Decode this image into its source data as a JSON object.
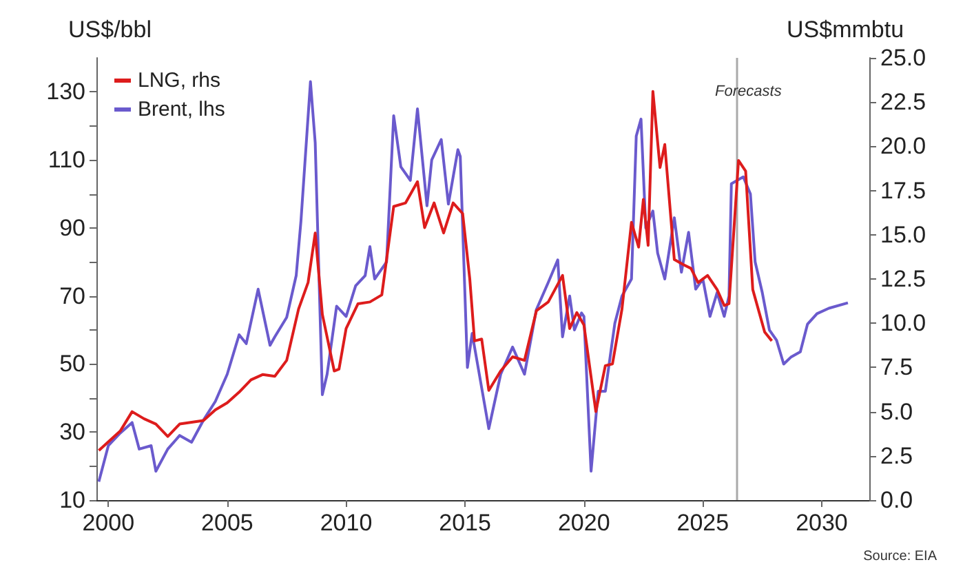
{
  "chart_data": {
    "type": "line",
    "ylabel": "US$/bbl",
    "y2label": "US$mmbtu",
    "xlim": [
      1999.5,
      2032
    ],
    "xticks": [
      2000,
      2005,
      2010,
      2015,
      2020,
      2025,
      2030
    ],
    "ylim": [
      10,
      140
    ],
    "yticks": [
      10,
      {
        "value": 20,
        "label": null
      },
      30,
      {
        "value": 40,
        "label": null
      },
      50,
      {
        "value": 60,
        "label": null
      },
      70,
      {
        "value": 80,
        "label": null
      },
      90,
      {
        "value": 100,
        "label": null
      },
      110,
      {
        "value": 120,
        "label": null
      },
      130
    ],
    "y2lim": [
      0,
      25
    ],
    "y2ticks": [
      {
        "value": 0,
        "label": "0.0"
      },
      2.5,
      {
        "value": 5,
        "label": "5.0"
      },
      7.5,
      {
        "value": 10,
        "label": "10.0"
      },
      12.5,
      {
        "value": 15,
        "label": "15.0"
      },
      17.5,
      {
        "value": 20,
        "label": "20.0"
      },
      22.5,
      {
        "value": 25,
        "label": "25.0"
      }
    ],
    "legend": "top left",
    "grid": false,
    "ref_lines": [
      {
        "axis": "x",
        "value": 2026.4,
        "label": "Forecasts",
        "color": "#aaaaaa"
      }
    ],
    "annotations": [
      "Source: EIA"
    ],
    "series": [
      {
        "name": "LNG, rhs",
        "color": "#dd1c1c",
        "axis": "y2",
        "x": [
          1999.6,
          2000.5,
          2001.0,
          2001.5,
          2002.0,
          2002.5,
          2003.0,
          2003.5,
          2004.0,
          2004.5,
          2005.0,
          2005.5,
          2006.0,
          2006.5,
          2007.0,
          2007.5,
          2008.0,
          2008.4,
          2008.7,
          2009.0,
          2009.5,
          2009.7,
          2010.0,
          2010.5,
          2011.0,
          2011.5,
          2012.0,
          2012.5,
          2013.0,
          2013.3,
          2013.7,
          2014.1,
          2014.5,
          2014.9,
          2015.2,
          2015.4,
          2015.7,
          2016.0,
          2016.5,
          2017.0,
          2017.5,
          2018.0,
          2018.5,
          2019.1,
          2019.4,
          2019.7,
          2020.0,
          2020.5,
          2020.9,
          2021.2,
          2021.6,
          2022.0,
          2022.3,
          2022.5,
          2022.7,
          2022.9,
          2023.2,
          2023.4,
          2023.8,
          2024.2,
          2024.5,
          2024.8,
          2025.2,
          2025.6,
          2025.9,
          2026.1,
          2026.5,
          2026.8,
          2027.1,
          2027.6,
          2027.9
        ],
        "values": [
          2.8,
          3.9,
          5.0,
          4.6,
          4.3,
          3.6,
          4.3,
          4.4,
          4.5,
          5.1,
          5.5,
          6.1,
          6.8,
          7.1,
          7.0,
          7.9,
          10.8,
          12.3,
          15.1,
          10.5,
          7.3,
          7.4,
          9.7,
          11.1,
          11.2,
          11.6,
          16.6,
          16.8,
          18.0,
          15.4,
          16.8,
          15.1,
          16.8,
          16.2,
          12.5,
          9.0,
          9.1,
          6.2,
          7.3,
          8.1,
          7.9,
          10.7,
          11.2,
          12.7,
          9.7,
          10.6,
          9.9,
          5.0,
          7.6,
          7.7,
          10.8,
          15.7,
          14.3,
          17.0,
          14.4,
          23.1,
          18.8,
          20.1,
          13.6,
          13.3,
          13.1,
          12.3,
          12.7,
          11.9,
          11.0,
          11.1,
          19.2,
          18.6,
          11.9,
          9.5,
          9.0
        ]
      },
      {
        "name": "Brent, lhs",
        "color": "#6a5acd",
        "x": [
          1999.6,
          2000.0,
          2000.5,
          2001.0,
          2001.3,
          2001.8,
          2002.0,
          2002.5,
          2003.0,
          2003.5,
          2004.0,
          2004.5,
          2005.0,
          2005.5,
          2005.8,
          2006.3,
          2006.8,
          2007.0,
          2007.5,
          2007.9,
          2008.1,
          2008.5,
          2008.7,
          2009.0,
          2009.2,
          2009.6,
          2010.0,
          2010.4,
          2010.8,
          2011.0,
          2011.2,
          2011.7,
          2012.0,
          2012.3,
          2012.7,
          2013.0,
          2013.4,
          2013.6,
          2014.0,
          2014.3,
          2014.7,
          2014.8,
          2015.1,
          2015.3,
          2015.6,
          2016.0,
          2016.5,
          2017.0,
          2017.5,
          2018.0,
          2018.5,
          2018.9,
          2019.1,
          2019.4,
          2019.6,
          2019.9,
          2020.0,
          2020.3,
          2020.6,
          2020.9,
          2021.3,
          2021.6,
          2022.0,
          2022.2,
          2022.4,
          2022.6,
          2022.9,
          2023.1,
          2023.4,
          2023.8,
          2024.1,
          2024.4,
          2024.7,
          2025.0,
          2025.3,
          2025.6,
          2025.9,
          2026.1,
          2026.2,
          2026.7,
          2027.0,
          2027.2,
          2027.5,
          2027.8,
          2028.1,
          2028.4,
          2028.7,
          2029.1,
          2029.4,
          2029.8,
          2030.3,
          2031.1
        ],
        "values": [
          15.4,
          26,
          29.7,
          32.8,
          25,
          26,
          18.5,
          25,
          29,
          27,
          33.5,
          39,
          47,
          58.6,
          56,
          72,
          55.5,
          58,
          63.7,
          76,
          92,
          133,
          115,
          41,
          47,
          67,
          64,
          73,
          76,
          84.5,
          75,
          80,
          123,
          108,
          104,
          125,
          96.5,
          110,
          116,
          97,
          113,
          111,
          49,
          59,
          47,
          31,
          47,
          55,
          47,
          66,
          74,
          80.6,
          58,
          70,
          60,
          65,
          64,
          18.5,
          42,
          42,
          62,
          70,
          75,
          117,
          122,
          90,
          95,
          82.6,
          75,
          93,
          77,
          88.7,
          72,
          75,
          64,
          71,
          64,
          70,
          103,
          105,
          100,
          80,
          71,
          60,
          57,
          50,
          52,
          53.6,
          61.7,
          64.8,
          66.4,
          68
        ]
      }
    ]
  }
}
